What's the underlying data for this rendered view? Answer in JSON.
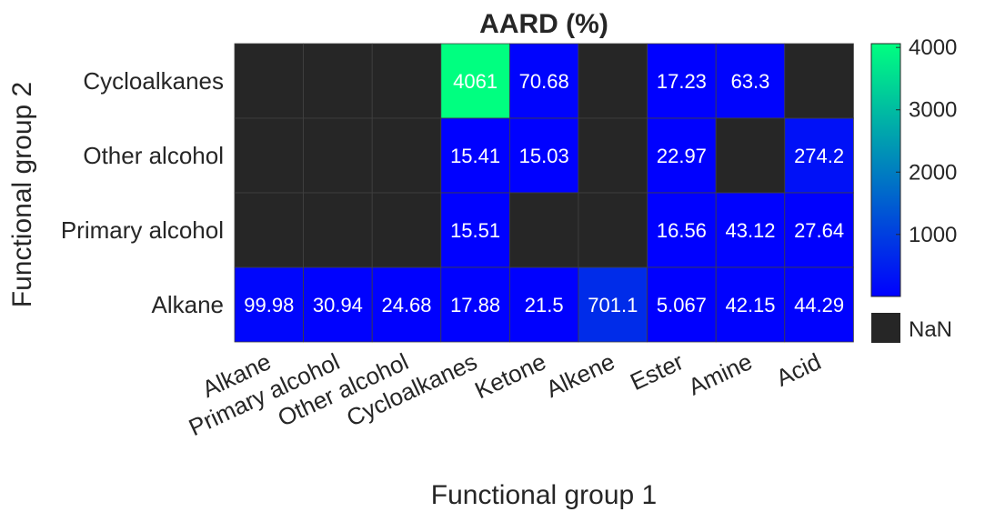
{
  "chart_data": {
    "type": "heatmap",
    "title": "AARD (%)",
    "xlabel": "Functional group 1",
    "ylabel": "Functional group 2",
    "x_categories": [
      "Alkane",
      "Primary alcohol",
      "Other alcohol",
      "Cycloalkanes",
      "Ketone",
      "Alkene",
      "Ester",
      "Amine",
      "Acid"
    ],
    "y_categories": [
      "Cycloalkanes",
      "Other alcohol",
      "Primary alcohol",
      "Alkane"
    ],
    "values": [
      [
        null,
        null,
        null,
        4061,
        70.68,
        null,
        17.23,
        63.3,
        null
      ],
      [
        null,
        null,
        null,
        15.41,
        15.03,
        null,
        22.97,
        null,
        274.2
      ],
      [
        null,
        null,
        null,
        15.51,
        null,
        null,
        16.56,
        43.12,
        27.64
      ],
      [
        99.98,
        30.94,
        24.68,
        17.88,
        21.5,
        701.1,
        5.067,
        42.15,
        44.29
      ]
    ],
    "cell_labels": [
      [
        "",
        "",
        "",
        "4061",
        "70.68",
        "",
        "17.23",
        "63.3",
        ""
      ],
      [
        "",
        "",
        "",
        "15.41",
        "15.03",
        "",
        "22.97",
        "",
        "274.2"
      ],
      [
        "",
        "",
        "",
        "15.51",
        "",
        "",
        "16.56",
        "43.12",
        "27.64"
      ],
      [
        "99.98",
        "30.94",
        "24.68",
        "17.88",
        "21.5",
        "701.1",
        "5.067",
        "42.15",
        "44.29"
      ]
    ],
    "colorbar": {
      "min": 5.067,
      "max": 4061,
      "ticks": [
        1000,
        2000,
        3000,
        4000
      ],
      "tick_labels": [
        "1000",
        "2000",
        "3000",
        "4000"
      ],
      "color_low": "#0000ff",
      "color_high": "#00ff80"
    },
    "nan_label": "NaN",
    "nan_color": "#262626",
    "grid": true
  }
}
